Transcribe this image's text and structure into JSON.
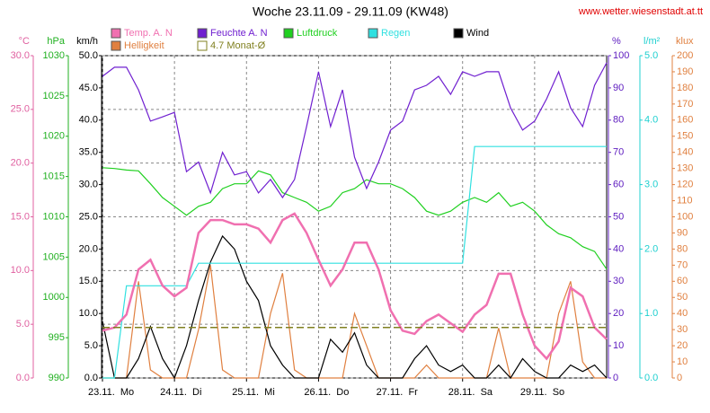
{
  "chart_data": {
    "type": "line",
    "title": "Woche 23.11.09 - 29.11.09 (KW48)",
    "source": "www.wetter.wiesenstadt.at.tt",
    "xlim": [
      0,
      168
    ],
    "xticks": [
      {
        "value": 0,
        "label": "23.11.  Mo"
      },
      {
        "value": 24,
        "label": "24.11.  Di"
      },
      {
        "value": 48,
        "label": "25.11.  Mi"
      },
      {
        "value": 72,
        "label": "26.11.  Do"
      },
      {
        "value": 96,
        "label": "27.11.  Fr"
      },
      {
        "value": 120,
        "label": "28.11.  Sa"
      },
      {
        "value": 144,
        "label": "29.11.  So"
      }
    ],
    "grid": true,
    "axes": [
      {
        "label": "°C",
        "side": "left",
        "color": "#e060a0",
        "lim": [
          0,
          30
        ],
        "ticks": [
          {
            "value": 0,
            "label": "0.0"
          },
          {
            "value": 5,
            "label": "5.0"
          },
          {
            "value": 10,
            "label": "10.0"
          },
          {
            "value": 15,
            "label": "15.0"
          },
          {
            "value": 20,
            "label": "20.0"
          },
          {
            "value": 25,
            "label": "25.0"
          },
          {
            "value": 30,
            "label": "30.0"
          }
        ]
      },
      {
        "label": "hPa",
        "side": "left",
        "color": "#20b020",
        "lim": [
          990,
          1030
        ],
        "ticks": [
          990,
          995,
          1000,
          1005,
          1010,
          1015,
          1020,
          1025,
          1030
        ]
      },
      {
        "label": "km/h",
        "side": "left",
        "color": "#000000",
        "lim": [
          0,
          50
        ],
        "ticks": [
          {
            "value": 0,
            "label": "0.0"
          },
          {
            "value": 5,
            "label": "5.0"
          },
          {
            "value": 10,
            "label": "10.0"
          },
          {
            "value": 15,
            "label": "15.0"
          },
          {
            "value": 20,
            "label": "20.0"
          },
          {
            "value": 25,
            "label": "25.0"
          },
          {
            "value": 30,
            "label": "30.0"
          },
          {
            "value": 35,
            "label": "35.0"
          },
          {
            "value": 40,
            "label": "40.0"
          },
          {
            "value": 45,
            "label": "45.0"
          },
          {
            "value": 50,
            "label": "50.0"
          }
        ]
      },
      {
        "label": "%",
        "side": "right",
        "color": "#6020c0",
        "lim": [
          0,
          100
        ],
        "ticks": [
          0,
          10,
          20,
          30,
          40,
          50,
          60,
          70,
          80,
          90,
          100
        ]
      },
      {
        "label": "l/m²",
        "side": "right",
        "color": "#20d0d0",
        "lim": [
          0,
          5
        ],
        "ticks": [
          {
            "value": 0,
            "label": "0.0"
          },
          {
            "value": 1,
            "label": "1.0"
          },
          {
            "value": 2,
            "label": "2.0"
          },
          {
            "value": 3,
            "label": "3.0"
          },
          {
            "value": 4,
            "label": "4.0"
          },
          {
            "value": 5,
            "label": "5.0"
          }
        ]
      },
      {
        "label": "klux",
        "side": "right",
        "color": "#e08040",
        "lim": [
          0,
          200
        ],
        "ticks": [
          0,
          10,
          20,
          30,
          40,
          50,
          60,
          70,
          80,
          90,
          100,
          110,
          120,
          130,
          140,
          150,
          160,
          170,
          180,
          190,
          200
        ]
      }
    ],
    "x": [
      0,
      4,
      8,
      12,
      16,
      20,
      24,
      28,
      32,
      36,
      40,
      44,
      48,
      52,
      56,
      60,
      64,
      68,
      72,
      76,
      80,
      84,
      88,
      92,
      96,
      100,
      104,
      108,
      112,
      116,
      120,
      124,
      128,
      132,
      136,
      140,
      144,
      148,
      152,
      156,
      160,
      164,
      168
    ],
    "series": [
      {
        "name": "Helligkeit",
        "color": "#e08040",
        "axis": "klux",
        "values": [
          0,
          0,
          0,
          60,
          5,
          0,
          0,
          0,
          30,
          70,
          5,
          0,
          0,
          0,
          40,
          65,
          5,
          0,
          0,
          0,
          0,
          40,
          20,
          0,
          0,
          0,
          0,
          8,
          0,
          0,
          0,
          0,
          0,
          31,
          0,
          0,
          0,
          0,
          40,
          60,
          10,
          0,
          0
        ]
      },
      {
        "name": "Wind",
        "color": "#000000",
        "axis": "km/h",
        "values": [
          8.8,
          0,
          0,
          3,
          8,
          3,
          0,
          5,
          12,
          18,
          22,
          20,
          15,
          12,
          5,
          2,
          0,
          0,
          0,
          6,
          4,
          7,
          2,
          0,
          0,
          0,
          3,
          5,
          2,
          1,
          2,
          0,
          0,
          2,
          0,
          3,
          1,
          0,
          0,
          2,
          1,
          2,
          0
        ]
      },
      {
        "name": "Luftdruck",
        "color": "#20d020",
        "axis": "hPa",
        "values": [
          1016.1,
          1016,
          1015.8,
          1015.7,
          1014.1,
          1012.4,
          1011.3,
          1010.2,
          1011.3,
          1011.8,
          1013.5,
          1014.1,
          1014.1,
          1015.7,
          1015.2,
          1013,
          1012.4,
          1011.8,
          1010.7,
          1011.3,
          1013,
          1013.5,
          1014.6,
          1014.1,
          1014.1,
          1013.5,
          1012.4,
          1010.7,
          1010.2,
          1010.7,
          1011.8,
          1012.4,
          1011.8,
          1013,
          1011.3,
          1011.8,
          1010.7,
          1009,
          1007.9,
          1007.4,
          1006.3,
          1005.7,
          1003.5
        ]
      },
      {
        "name": "Regen",
        "color": "#30e0e0",
        "axis": "l/m²",
        "values": [
          0,
          0,
          1.43,
          1.43,
          1.43,
          1.43,
          1.43,
          1.43,
          1.78,
          1.78,
          1.78,
          1.78,
          1.78,
          1.78,
          1.78,
          1.78,
          1.78,
          1.78,
          1.78,
          1.78,
          1.78,
          1.78,
          1.78,
          1.78,
          1.78,
          1.78,
          1.78,
          1.78,
          1.78,
          1.78,
          1.78,
          3.59,
          3.59,
          3.59,
          3.59,
          3.59,
          3.59,
          3.59,
          3.59,
          3.59,
          3.59,
          3.59,
          3.59
        ]
      },
      {
        "name": "Feuchte A. N",
        "color": "#7020d0",
        "axis": "%",
        "values": [
          93.6,
          96.4,
          96.4,
          89.4,
          79.7,
          81,
          82.4,
          64,
          67,
          57.4,
          70,
          63,
          64,
          57.4,
          61.6,
          56,
          61.6,
          78,
          95,
          78,
          89.4,
          68.5,
          58.8,
          67,
          76.9,
          79.7,
          89.4,
          90.8,
          93.6,
          88,
          95,
          93.6,
          95,
          95,
          83.8,
          76.9,
          79.7,
          86.6,
          95,
          83.8,
          78,
          90.8,
          97.8
        ]
      },
      {
        "name": "Temp. A. N",
        "color": "#f070b0",
        "axis": "°C",
        "values": [
          4.4,
          4.7,
          5.9,
          10.1,
          11,
          8.6,
          7.6,
          8.4,
          13.5,
          14.7,
          14.7,
          14.3,
          14.3,
          13.9,
          12.6,
          14.7,
          15.3,
          13.5,
          11,
          8.6,
          10.1,
          12.6,
          12.6,
          10.1,
          6.3,
          4.4,
          4.1,
          5.3,
          5.9,
          5.1,
          4.3,
          5.9,
          6.8,
          9.7,
          9.7,
          5.9,
          3,
          1.8,
          3.4,
          8.4,
          7.6,
          4.7,
          3.6
        ]
      }
    ],
    "reference_line": {
      "name": "4.7 Monat-Ø",
      "value": 4.7,
      "axis": "°C",
      "color": "#808020"
    }
  }
}
